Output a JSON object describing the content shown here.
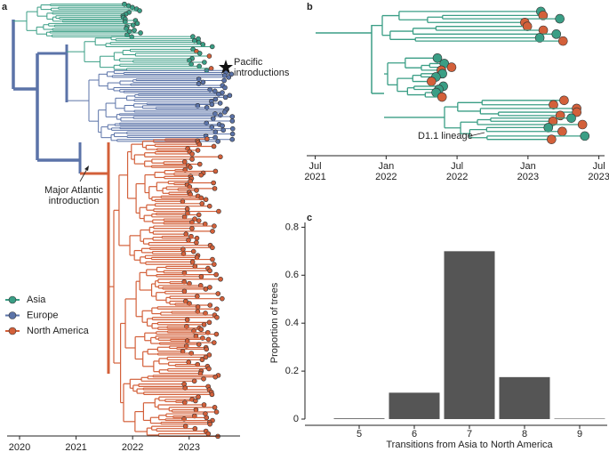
{
  "chart_data": [
    {
      "type": "tree",
      "panel": "a",
      "xlim": [
        2019.78,
        2023.9
      ],
      "xticks": [
        2020,
        2021,
        2022,
        2023
      ],
      "series": [
        {
          "name": "Asia",
          "color": "#3a9e85"
        },
        {
          "name": "Europe",
          "color": "#5b73a8"
        },
        {
          "name": "North America",
          "color": "#d3603a"
        }
      ],
      "annotations": [
        "Pacific introductions",
        "Major Atlantic introduction"
      ]
    },
    {
      "type": "tree",
      "panel": "b",
      "xlim": [
        2021.44,
        2023.54
      ],
      "xticks": [
        {
          "value": 2021.5,
          "label": "Jul 2021"
        },
        {
          "value": 2022.0,
          "label": "Jan 2022"
        },
        {
          "value": 2022.5,
          "label": "Jul 2022"
        },
        {
          "value": 2023.0,
          "label": "Jan 2023"
        },
        {
          "value": 2023.5,
          "label": "Jul 2023"
        }
      ],
      "annotations": [
        "D1.1 lineage"
      ]
    },
    {
      "type": "bar",
      "panel": "c",
      "categories": [
        "5",
        "6",
        "7",
        "8",
        "9"
      ],
      "values": [
        0.003,
        0.11,
        0.7,
        0.175,
        0.002
      ],
      "color": "#555555",
      "ylim": [
        0,
        0.82
      ],
      "yticks": [
        0,
        0.2,
        0.4,
        0.6,
        0.8
      ],
      "xlabel": "Transitions from Asia to North America",
      "ylabel": "Proportion of trees"
    }
  ]
}
